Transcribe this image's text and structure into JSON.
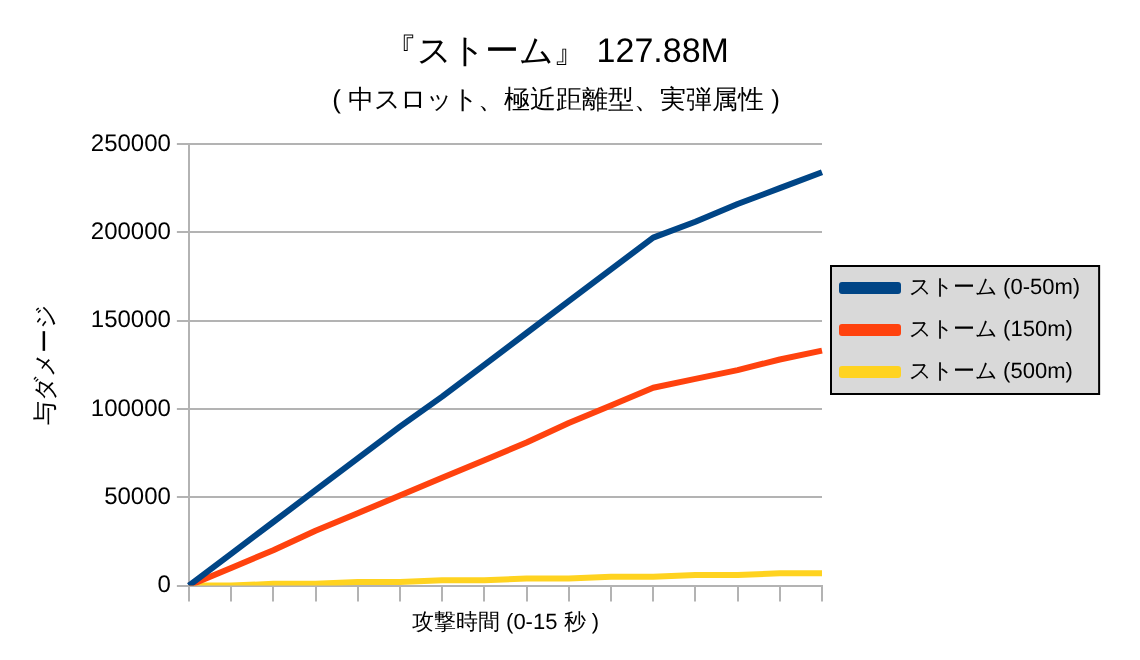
{
  "chart_data": {
    "type": "line",
    "title": "『ストーム』 127.88M",
    "subtitle": "( 中スロット、極近距離型、実弾属性 )",
    "xlabel": "攻撃時間 (0-15 秒 )",
    "ylabel": "与ダメージ",
    "categories": [
      null,
      null,
      null,
      null,
      null,
      null,
      null,
      null,
      null,
      null,
      null,
      null,
      null,
      null,
      null,
      null
    ],
    "series": [
      {
        "name": "ストーム (0-50m)",
        "color": "#004586",
        "values": [
          0,
          18000,
          36000,
          54000,
          72000,
          90000,
          107000,
          125000,
          143000,
          161000,
          179000,
          197000,
          206000,
          216000,
          225000,
          234000
        ]
      },
      {
        "name": "ストーム (150m)",
        "color": "#ff420e",
        "values": [
          0,
          10000,
          20000,
          31000,
          41000,
          51000,
          61000,
          71000,
          81000,
          92000,
          102000,
          112000,
          117000,
          122000,
          128000,
          133000
        ]
      },
      {
        "name": "ストーム (500m)",
        "color": "#ffd320",
        "values": [
          0,
          0,
          1000,
          1000,
          2000,
          2000,
          3000,
          3000,
          4000,
          4000,
          5000,
          5000,
          6000,
          6000,
          7000,
          7000
        ]
      }
    ],
    "ylim": [
      0,
      250000
    ],
    "yticks": [
      0,
      50000,
      100000,
      150000,
      200000,
      250000
    ],
    "grid": "y",
    "legend": "right",
    "marker": "none",
    "line_style": "solid",
    "tick_labels": "y"
  }
}
